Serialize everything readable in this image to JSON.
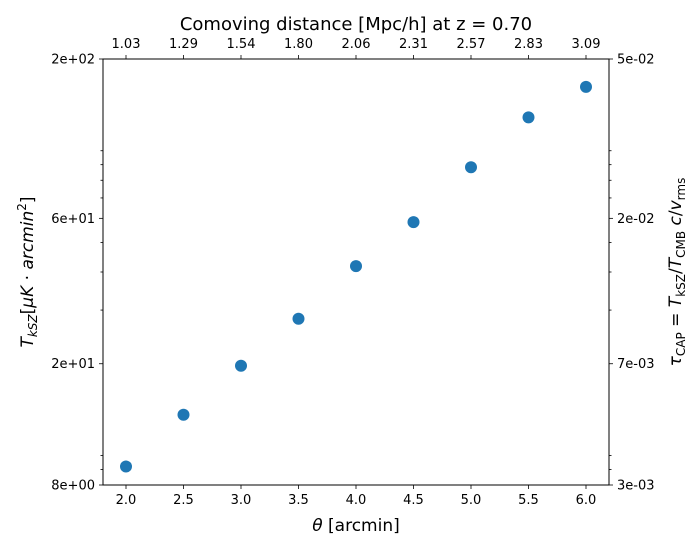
{
  "chart_data": {
    "type": "scatter",
    "title": "Comoving distance [Mpc/h] at z = 0.70",
    "xlabel": "θ [arcmin]",
    "ylabel": "T_kSZ [μK · arcmin²]",
    "ylabel_right": "τ_CAP = T_kSZ/T_CMB c/v_rms",
    "x_scale": "linear",
    "y_scale": "log",
    "xlim": [
      1.8,
      6.2
    ],
    "ylim": [
      8,
      200
    ],
    "y2lim": [
      0.003,
      0.05
    ],
    "grid": false,
    "legend": "none",
    "marker_color": "#1f77b4",
    "x": [
      2.0,
      2.5,
      3.0,
      3.5,
      4.0,
      4.5,
      5.0,
      5.5,
      6.0
    ],
    "y": [
      9.2,
      13.6,
      19.7,
      28.1,
      41.8,
      58.3,
      88.3,
      128.7,
      162.0
    ],
    "x_ticks": [
      2.0,
      2.5,
      3.0,
      3.5,
      4.0,
      4.5,
      5.0,
      5.5,
      6.0
    ],
    "x_tick_labels": [
      "2.0",
      "2.5",
      "3.0",
      "3.5",
      "4.0",
      "4.5",
      "5.0",
      "5.5",
      "6.0"
    ],
    "top_tick_labels": [
      "1.03",
      "1.29",
      "1.54",
      "1.80",
      "2.06",
      "2.31",
      "2.57",
      "2.83",
      "3.09"
    ],
    "y_ticks": [
      8,
      20,
      60,
      200
    ],
    "y_tick_labels": [
      "8e+00",
      "2e+01",
      "6e+01",
      "2e+02"
    ],
    "y2_tick_labels": [
      "3e-03",
      "7e-03",
      "2e-02",
      "5e-02"
    ]
  }
}
